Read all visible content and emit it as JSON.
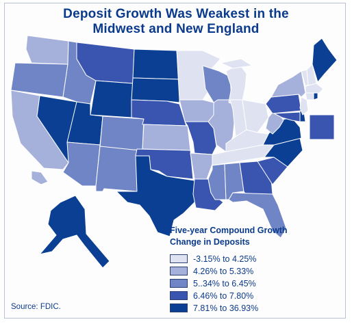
{
  "title_line1": "Deposit Growth Was Weakest in the",
  "title_line2": "Midwest and New England",
  "legend": {
    "title_line1": "Five-year Compound Growth",
    "title_line2": "Change in Deposits",
    "items": [
      {
        "label": "-3.15% to 4.25%",
        "color": "#dfe2f0"
      },
      {
        "label": "4.26% to 5.33%",
        "color": "#a6b1db"
      },
      {
        "label": "5..34% to 6.45%",
        "color": "#7085c6"
      },
      {
        "label": "6.46% to 7.80%",
        "color": "#3a55b0"
      },
      {
        "label": "7.81% to 36.93%",
        "color": "#0b3f93"
      }
    ]
  },
  "source": "Source: FDIC.",
  "state_classes": {
    "WA": 1,
    "OR": 2,
    "CA": 1,
    "NV": 4,
    "ID": 2,
    "MT": 3,
    "WY": 4,
    "UT": 4,
    "AZ": 2,
    "CO": 2,
    "NM": 2,
    "ND": 4,
    "SD": 4,
    "NE": 3,
    "KS": 1,
    "OK": 3,
    "TX": 4,
    "MN": 0,
    "IA": 1,
    "MO": 3,
    "AR": 1,
    "LA": 3,
    "WI": 2,
    "IL": 1,
    "MI": 0,
    "IN": 0,
    "OH": 0,
    "KY": 0,
    "TN": 0,
    "MS": 2,
    "AL": 2,
    "GA": 3,
    "FL": 2,
    "SC": 3,
    "NC": 4,
    "VA": 4,
    "WV": 1,
    "PA": 3,
    "NY": 1,
    "VT": 0,
    "NH": 0,
    "ME": 4,
    "MA": 0,
    "CT": 0,
    "RI": 4,
    "NJ": 0,
    "DE": 4,
    "MD": 3,
    "DC": 3,
    "AK": 4,
    "HI": 1
  }
}
